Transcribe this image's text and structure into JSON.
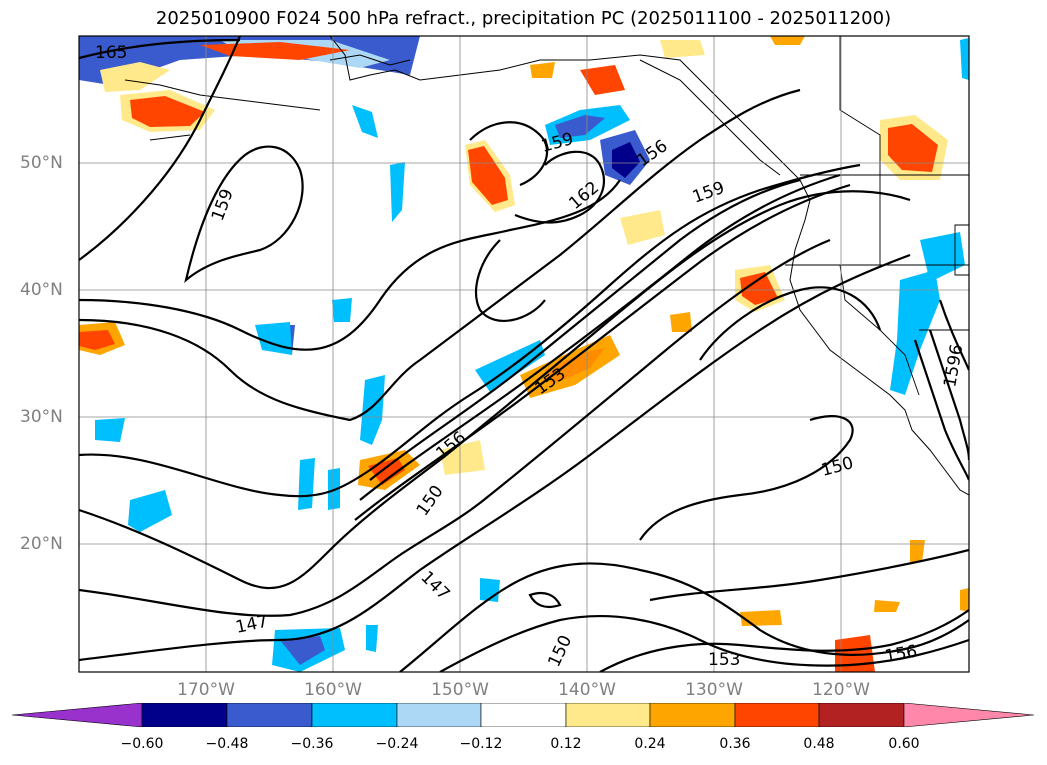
{
  "title": "2025010900 F024 500 hPa refract., precipitation PC (2025011100 - 2025011200)",
  "map": {
    "lat_labels": [
      "50°N",
      "40°N",
      "30°N",
      "20°N"
    ],
    "lon_labels": [
      "170°W",
      "160°W",
      "150°W",
      "140°W",
      "130°W",
      "120°W"
    ],
    "contour_labels": [
      {
        "name": "contour-label-165",
        "text": "165"
      },
      {
        "name": "contour-label-159-west",
        "text": "159"
      },
      {
        "name": "contour-label-159-central",
        "text": "159"
      },
      {
        "name": "contour-label-156-north",
        "text": "156"
      },
      {
        "name": "contour-label-162",
        "text": "162"
      },
      {
        "name": "contour-label-159-east",
        "text": "159"
      },
      {
        "name": "contour-label-153-jet",
        "text": "153"
      },
      {
        "name": "contour-label-156-jet",
        "text": "156"
      },
      {
        "name": "contour-label-150-jet",
        "text": "150"
      },
      {
        "name": "contour-label-150-east",
        "text": "150"
      },
      {
        "name": "contour-label-147-upper",
        "text": "147"
      },
      {
        "name": "contour-label-147-lower",
        "text": "147"
      },
      {
        "name": "contour-label-150-south",
        "text": "150"
      },
      {
        "name": "contour-label-153-south",
        "text": "153"
      },
      {
        "name": "contour-label-156-south",
        "text": "156"
      },
      {
        "name": "contour-label-1596",
        "text": "1596"
      }
    ]
  },
  "colorbar": {
    "colors": [
      "#9932cc",
      "#00008b",
      "#3a5bcd",
      "#00bfff",
      "#add8f5",
      "#ffffff",
      "#ffe98a",
      "#ffa500",
      "#ff4500",
      "#b22222",
      "#ff88aa"
    ],
    "ticks": [
      "−0.60",
      "−0.48",
      "−0.36",
      "−0.24",
      "−0.12",
      "0.12",
      "0.24",
      "0.36",
      "0.48",
      "0.60"
    ]
  }
}
